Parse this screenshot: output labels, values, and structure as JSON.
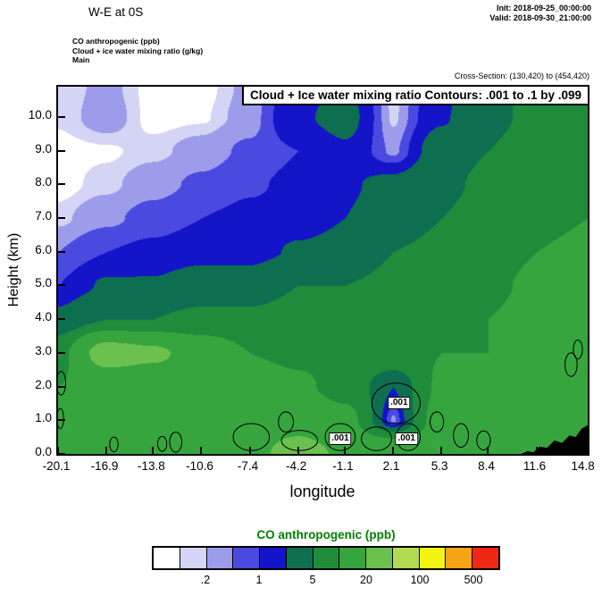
{
  "header": {
    "title": "W-E at 0S",
    "init_label": "Init: 2018-09-25_00:00:00",
    "valid_label": "Valid: 2018-09-30_21:00:00",
    "field_lines": [
      "CO anthropogenic   (ppb)",
      "Cloud + ice water mixing ratio   (g/kg)",
      "Main"
    ],
    "cross_section_label": "Cross-Section: (130,420) to (454,420)"
  },
  "plot": {
    "banner": "Cloud + Ice water mixing ratio Contours: .001 to .1 by .099",
    "xlabel": "longitude",
    "ylabel": "Height (km)"
  },
  "colorbar": {
    "title": "CO anthropogenic   (ppb)",
    "title_color": "#008000",
    "labels": [
      ".2",
      "1",
      "5",
      "20",
      "100",
      "500"
    ],
    "label_boundary_cells": [
      2,
      4,
      6,
      8,
      10,
      12
    ]
  },
  "chart_data": {
    "type": "heatmap",
    "title": "W-E vertical cross-section at 0S: CO anthropogenic (ppb) shaded, cloud + ice water mixing ratio contoured",
    "xlabel": "longitude",
    "ylabel": "Height (km)",
    "x_tick_labels": [
      "-20.1",
      "-16.9",
      "-13.8",
      "-10.6",
      "-7.4",
      "-4.2",
      "-1.1",
      "2.1",
      "5.3",
      "8.4",
      "11.6",
      "14.8"
    ],
    "y_tick_labels": [
      "0.0",
      "1.0",
      "2.0",
      "3.0",
      "4.0",
      "5.0",
      "6.0",
      "7.0",
      "8.0",
      "9.0",
      "10.0"
    ],
    "x_range": [
      -20.1,
      15.0
    ],
    "y_range": [
      0,
      10.9
    ],
    "levels": [
      0.1,
      0.2,
      0.5,
      1,
      2,
      5,
      10,
      20,
      50,
      100,
      200,
      500
    ],
    "colors": [
      "#ffffff",
      "#d4d4f4",
      "#9c9cea",
      "#4a4ae0",
      "#1414c8",
      "#0e6e50",
      "#1f8c3c",
      "#36a53e",
      "#6cc04e",
      "#b2da52",
      "#f4f414",
      "#f4a414",
      "#ee2814"
    ],
    "x": [
      -20.1,
      -16.9,
      -13.8,
      -10.6,
      -7.4,
      -4.2,
      -1.1,
      2.1,
      5.3,
      8.4,
      11.6,
      15.0
    ],
    "y": [
      0,
      1,
      2,
      3,
      4,
      5,
      6,
      7,
      8,
      9,
      10,
      10.9
    ],
    "values_ppb": [
      [
        14,
        16,
        16,
        16,
        17,
        25,
        18,
        18,
        14,
        13,
        16,
        18
      ],
      [
        12,
        14,
        14,
        15,
        15,
        16,
        12,
        0.4,
        13,
        12,
        15,
        17
      ],
      [
        10,
        12,
        12,
        13,
        13,
        11,
        8,
        2,
        11,
        11,
        14,
        16
      ],
      [
        8,
        25,
        22,
        15,
        10,
        9,
        9,
        8,
        10,
        10,
        12,
        14
      ],
      [
        2.5,
        5,
        5,
        6,
        6,
        7,
        7,
        8,
        9,
        10,
        12,
        13
      ],
      [
        1,
        2.2,
        2.2,
        3,
        3,
        5,
        5,
        6,
        8,
        9,
        11,
        12
      ],
      [
        0.5,
        1,
        1.2,
        1.5,
        1.5,
        2.2,
        2.5,
        5,
        6,
        8,
        10,
        11
      ],
      [
        0.15,
        0.4,
        0.7,
        1,
        1.2,
        1.5,
        2,
        3,
        5,
        7,
        9,
        10
      ],
      [
        0.05,
        0.15,
        0.35,
        0.6,
        0.9,
        1.2,
        1.8,
        2.5,
        4,
        6,
        8,
        9
      ],
      [
        0.05,
        0.08,
        0.15,
        0.3,
        0.6,
        1,
        1.8,
        0.4,
        3,
        5,
        7,
        8
      ],
      [
        0.12,
        0.3,
        0.05,
        0.08,
        0.3,
        1.8,
        2.5,
        0.15,
        1.8,
        4,
        6,
        7
      ],
      [
        0.12,
        0.25,
        0.05,
        0.05,
        0.25,
        1.5,
        2.2,
        0.1,
        1.5,
        4,
        6,
        7
      ]
    ],
    "terrain_profile": [
      [
        10.6,
        0
      ],
      [
        11.0,
        0.08
      ],
      [
        11.4,
        0.05
      ],
      [
        11.8,
        0.22
      ],
      [
        12.3,
        0.18
      ],
      [
        12.8,
        0.4
      ],
      [
        13.3,
        0.33
      ],
      [
        13.8,
        0.55
      ],
      [
        14.2,
        0.5
      ],
      [
        14.6,
        0.75
      ],
      [
        15.0,
        0.85
      ]
    ],
    "cloud_contours": {
      "interval_text": ".001 to .1 by .099",
      "label": ".001",
      "label_points": [
        [
          2.5,
          1.5
        ],
        [
          -1.4,
          0.45
        ],
        [
          3.0,
          0.45
        ]
      ],
      "ellipses": [
        [
          -7.3,
          0.5,
          1.2,
          0.4
        ],
        [
          -5.0,
          0.95,
          0.5,
          0.3
        ],
        [
          -4.1,
          0.4,
          1.2,
          0.3
        ],
        [
          -1.4,
          0.5,
          1.0,
          0.4
        ],
        [
          2.3,
          1.5,
          1.6,
          0.6
        ],
        [
          1.0,
          0.45,
          1.0,
          0.35
        ],
        [
          3.1,
          0.5,
          0.8,
          0.4
        ],
        [
          5.0,
          0.95,
          0.45,
          0.3
        ],
        [
          6.6,
          0.55,
          0.5,
          0.35
        ],
        [
          8.1,
          0.4,
          0.45,
          0.28
        ],
        [
          -12.3,
          0.35,
          0.4,
          0.3
        ],
        [
          -13.2,
          0.3,
          0.3,
          0.22
        ],
        [
          -16.4,
          0.28,
          0.28,
          0.22
        ],
        [
          -19.9,
          2.1,
          0.3,
          0.35
        ],
        [
          -19.95,
          1.05,
          0.22,
          0.3
        ],
        [
          13.9,
          2.65,
          0.4,
          0.35
        ],
        [
          14.35,
          3.1,
          0.3,
          0.28
        ]
      ]
    }
  }
}
